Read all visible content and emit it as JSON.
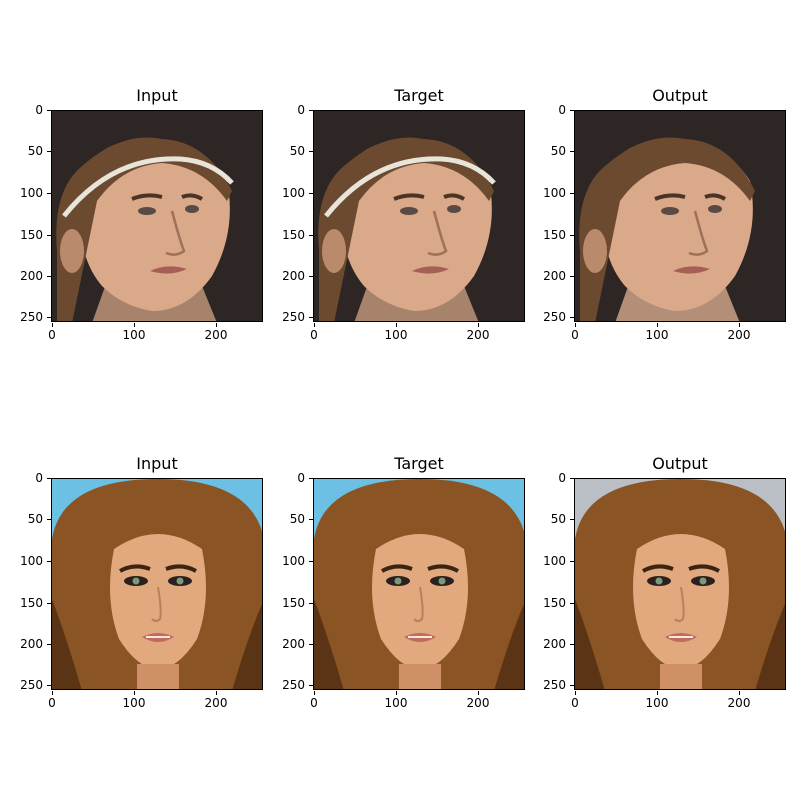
{
  "figure": {
    "panels": [
      {
        "title": "Input",
        "subject": "man-headband"
      },
      {
        "title": "Target",
        "subject": "man-headband"
      },
      {
        "title": "Output",
        "subject": "man-smooth"
      },
      {
        "title": "Input",
        "subject": "woman-blue-bg"
      },
      {
        "title": "Target",
        "subject": "woman-blue-bg"
      },
      {
        "title": "Output",
        "subject": "woman-gray-bg"
      }
    ],
    "y_ticks": [
      "0",
      "50",
      "100",
      "150",
      "200",
      "250"
    ],
    "x_ticks": [
      "0",
      "100",
      "200"
    ],
    "colors": {
      "dark_bg": "#2e2624",
      "skin_light": "#d9a98a",
      "skin_dark": "#b98a6b",
      "hair_brown": "#6b4a30",
      "hair_auburn": "#8a5424",
      "sky_blue": "#6cc0e4",
      "gray_bg": "#b9bfc4"
    }
  }
}
